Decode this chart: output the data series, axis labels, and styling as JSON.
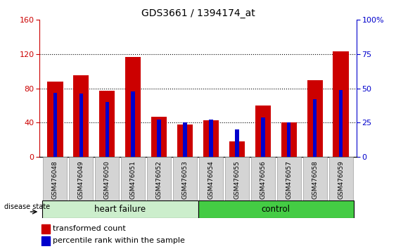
{
  "title": "GDS3661 / 1394174_at",
  "samples": [
    "GSM476048",
    "GSM476049",
    "GSM476050",
    "GSM476051",
    "GSM476052",
    "GSM476053",
    "GSM476054",
    "GSM476055",
    "GSM476056",
    "GSM476057",
    "GSM476058",
    "GSM476059"
  ],
  "red_values": [
    88,
    95,
    77,
    117,
    47,
    38,
    43,
    18,
    60,
    40,
    90,
    123
  ],
  "blue_percent": [
    47,
    46,
    40,
    48,
    27,
    25,
    27,
    20,
    29,
    25,
    42,
    49
  ],
  "ylim_left": [
    0,
    160
  ],
  "ylim_right": [
    0,
    100
  ],
  "yticks_left": [
    0,
    40,
    80,
    120,
    160
  ],
  "yticks_right": [
    0,
    25,
    50,
    75,
    100
  ],
  "ytick_labels_right": [
    "0",
    "25",
    "50",
    "75",
    "100%"
  ],
  "bar_color_red": "#cc0000",
  "bar_color_blue": "#0000cc",
  "bg_plot": "#ffffff",
  "bg_xticklabel": "#d4d4d4",
  "group_labels": [
    "heart failure",
    "control"
  ],
  "hf_color": "#cceecc",
  "ctrl_color": "#44cc44",
  "disease_state_label": "disease state",
  "legend_red": "transformed count",
  "legend_blue": "percentile rank within the sample",
  "bar_width": 0.6,
  "blue_bar_width": 0.15
}
